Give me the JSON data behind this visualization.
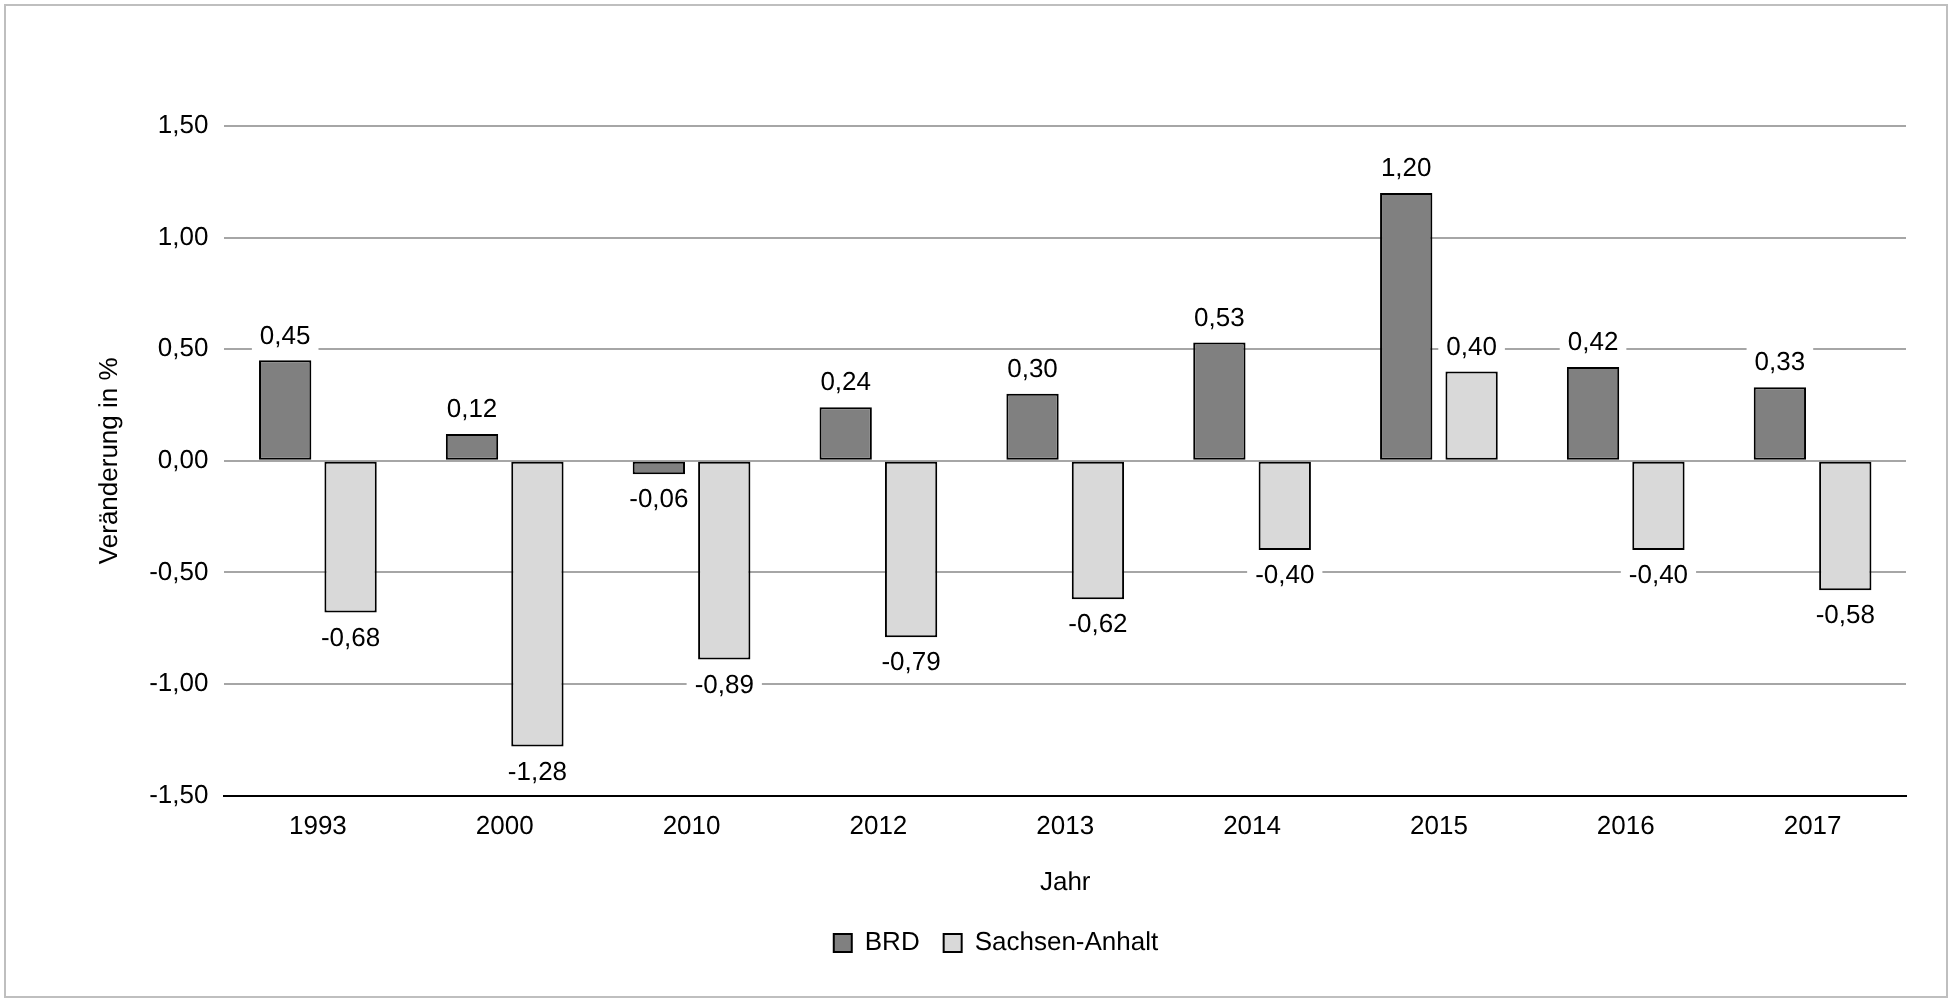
{
  "chart_data": {
    "type": "bar",
    "xlabel": "Jahr",
    "ylabel": "Veränderung in %",
    "categories": [
      "1993",
      "2000",
      "2010",
      "2012",
      "2013",
      "2014",
      "2015",
      "2016",
      "2017"
    ],
    "series": [
      {
        "name": "BRD",
        "color": "#808080",
        "values": [
          0.45,
          0.12,
          -0.06,
          0.24,
          0.3,
          0.53,
          1.2,
          0.42,
          0.33
        ],
        "value_labels": [
          "0,45",
          "0,12",
          "-0,06",
          "0,24",
          "0,30",
          "0,53",
          "1,20",
          "0,42",
          "0,33"
        ]
      },
      {
        "name": "Sachsen-Anhalt",
        "color": "#d9d9d9",
        "values": [
          -0.68,
          -1.28,
          -0.89,
          -0.79,
          -0.62,
          -0.4,
          0.4,
          -0.4,
          -0.58
        ],
        "value_labels": [
          "-0,68",
          "-1,28",
          "-0,89",
          "-0,79",
          "-0,62",
          "-0,40",
          "0,40",
          "-0,40",
          "-0,58"
        ]
      }
    ],
    "ylim": [
      -1.5,
      1.5
    ],
    "yticks": [
      {
        "value": -1.5,
        "label": "-1,50"
      },
      {
        "value": -1,
        "label": "-1,00"
      },
      {
        "value": -0.5,
        "label": "-0,50"
      },
      {
        "value": 0,
        "label": "0,00"
      },
      {
        "value": 0.5,
        "label": "0,50"
      },
      {
        "value": 1,
        "label": "1,00"
      },
      {
        "value": 1.5,
        "label": "1,50"
      }
    ],
    "grid": "y",
    "legend": "bottom"
  }
}
